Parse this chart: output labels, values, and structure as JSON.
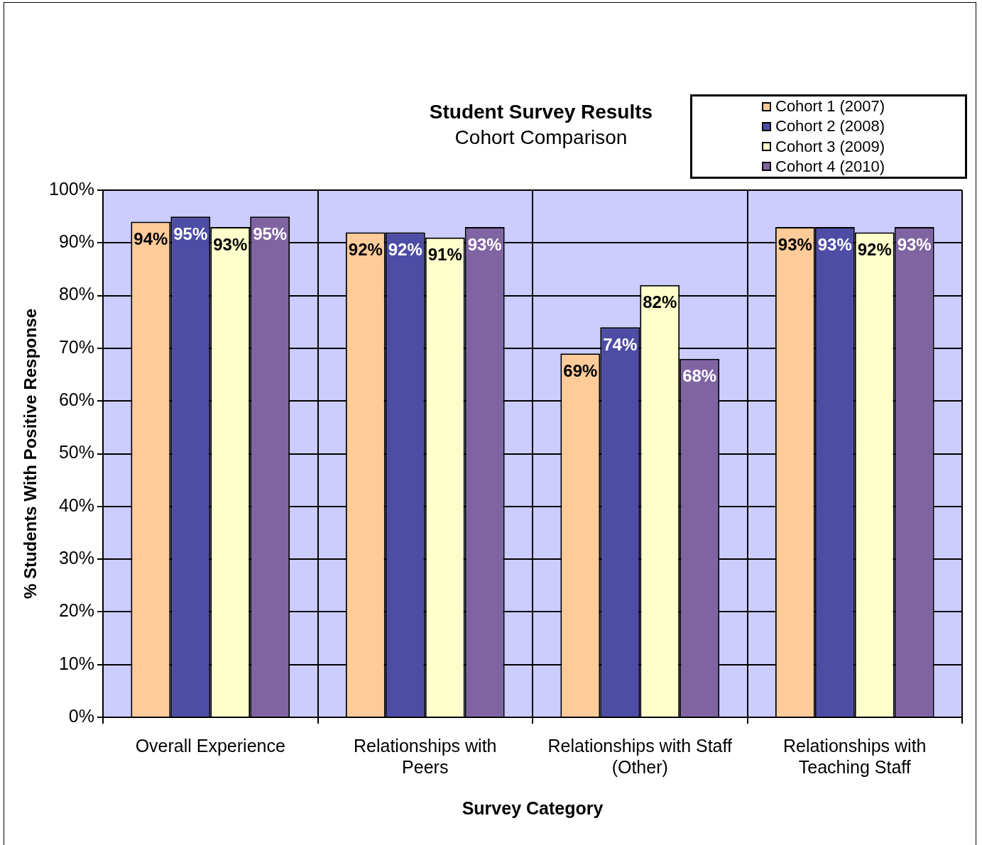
{
  "chart_data": {
    "type": "bar",
    "title": "Student Survey Results",
    "subtitle": "Cohort Comparison",
    "xlabel": "Survey Category",
    "ylabel": "% Students With Positive Response",
    "categories": [
      "Overall Experience",
      "Relationships with Peers",
      "Relationships with Staff (Other)",
      "Relationships with Teaching Staff"
    ],
    "series": [
      {
        "name": "Cohort 1 (2007)",
        "color": "#ffcc99",
        "values": [
          94,
          92,
          69,
          93
        ],
        "value_labels": [
          "94%",
          "92%",
          "69%",
          "93%"
        ]
      },
      {
        "name": "Cohort 2 (2008)",
        "color": "#4d4da6",
        "values": [
          95,
          92,
          74,
          93
        ],
        "value_labels": [
          "95%",
          "92%",
          "74%",
          "93%"
        ]
      },
      {
        "name": "Cohort 3 (2009)",
        "color": "#ffffcc",
        "values": [
          93,
          91,
          82,
          92
        ],
        "value_labels": [
          "93%",
          "91%",
          "82%",
          "92%"
        ]
      },
      {
        "name": "Cohort 4 (2010)",
        "color": "#8064a2",
        "values": [
          95,
          93,
          68,
          93
        ],
        "value_labels": [
          "95%",
          "93%",
          "68%",
          "93%"
        ]
      }
    ],
    "ylim": [
      0,
      100
    ],
    "yticks": [
      {
        "value": 0,
        "label": "0%"
      },
      {
        "value": 10,
        "label": "10%"
      },
      {
        "value": 20,
        "label": "20%"
      },
      {
        "value": 30,
        "label": "30%"
      },
      {
        "value": 40,
        "label": "40%"
      },
      {
        "value": 50,
        "label": "50%"
      },
      {
        "value": 60,
        "label": "60%"
      },
      {
        "value": 70,
        "label": "70%"
      },
      {
        "value": 80,
        "label": "80%"
      },
      {
        "value": 90,
        "label": "90%"
      },
      {
        "value": 100,
        "label": "100%"
      }
    ],
    "grid": true,
    "legend": "top right"
  }
}
